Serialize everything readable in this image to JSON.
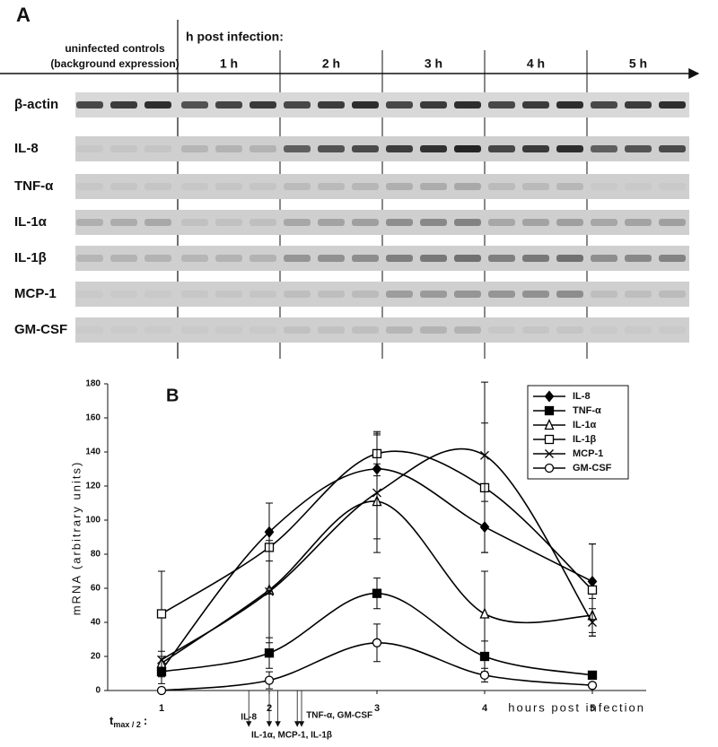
{
  "panel_a": {
    "label": "A",
    "controls_line1": "uninfected controls",
    "controls_line2": "(background expression)",
    "infection_header": "h post infection:",
    "hours": [
      "1 h",
      "2 h",
      "3 h",
      "4 h",
      "5 h"
    ],
    "rows": [
      "β-actin",
      "IL-8",
      "TNF-α",
      "IL-1α",
      "IL-1β",
      "MCP-1",
      "GM-CSF"
    ]
  },
  "chart_data": {
    "type": "line",
    "panel_label": "B",
    "x_label": "hours post infection",
    "y_label": "mRNA (arbitrary units)",
    "x": [
      1,
      2,
      3,
      4,
      5
    ],
    "xlim": [
      0.5,
      5.5
    ],
    "xticks": [
      1,
      2,
      3,
      4,
      5
    ],
    "ylim": [
      0,
      180
    ],
    "yticks": [
      0,
      20,
      40,
      60,
      80,
      100,
      120,
      140,
      160,
      180
    ],
    "smooth": true,
    "legend": "top-right",
    "series": [
      {
        "name": "IL-8",
        "color": "#000000",
        "marker": "diamond",
        "filled": true,
        "values": [
          12,
          93,
          130,
          96,
          64
        ],
        "errors": [
          8,
          17,
          20,
          15,
          22
        ]
      },
      {
        "name": "TNF-α",
        "color": "#000000",
        "marker": "square",
        "filled": true,
        "values": [
          11,
          22,
          57,
          20,
          9
        ],
        "errors": [
          3,
          9,
          9,
          9,
          1
        ]
      },
      {
        "name": "IL-1α",
        "color": "#000000",
        "marker": "triangle",
        "filled": false,
        "values": [
          16,
          59,
          111,
          45,
          44
        ],
        "errors": [
          4,
          35,
          22,
          25,
          10
        ]
      },
      {
        "name": "IL-1β",
        "color": "#000000",
        "marker": "square",
        "filled": false,
        "values": [
          45,
          84,
          139,
          119,
          59
        ],
        "errors": [
          25,
          26,
          13,
          38,
          27
        ]
      },
      {
        "name": "MCP-1",
        "color": "#000000",
        "marker": "x",
        "filled": false,
        "values": [
          18,
          58,
          116,
          138,
          40
        ],
        "errors": [
          5,
          30,
          35,
          43,
          8
        ]
      },
      {
        "name": "GM-CSF",
        "color": "#000000",
        "marker": "circle",
        "filled": false,
        "values": [
          0,
          6,
          28,
          9,
          3
        ],
        "errors": [
          1,
          5,
          11,
          4,
          1
        ]
      }
    ],
    "tmax": {
      "main": "t",
      "sub": "max / 2",
      "tail": ":",
      "arrows": [
        {
          "label": "IL-8",
          "x": [
            1.81
          ]
        },
        {
          "label": "IL-1α, MCP-1, IL-1β",
          "x": [
            2.0,
            2.08
          ]
        },
        {
          "label": "TNF-α, GM-CSF",
          "x": [
            2.26,
            2.3
          ]
        }
      ]
    }
  }
}
